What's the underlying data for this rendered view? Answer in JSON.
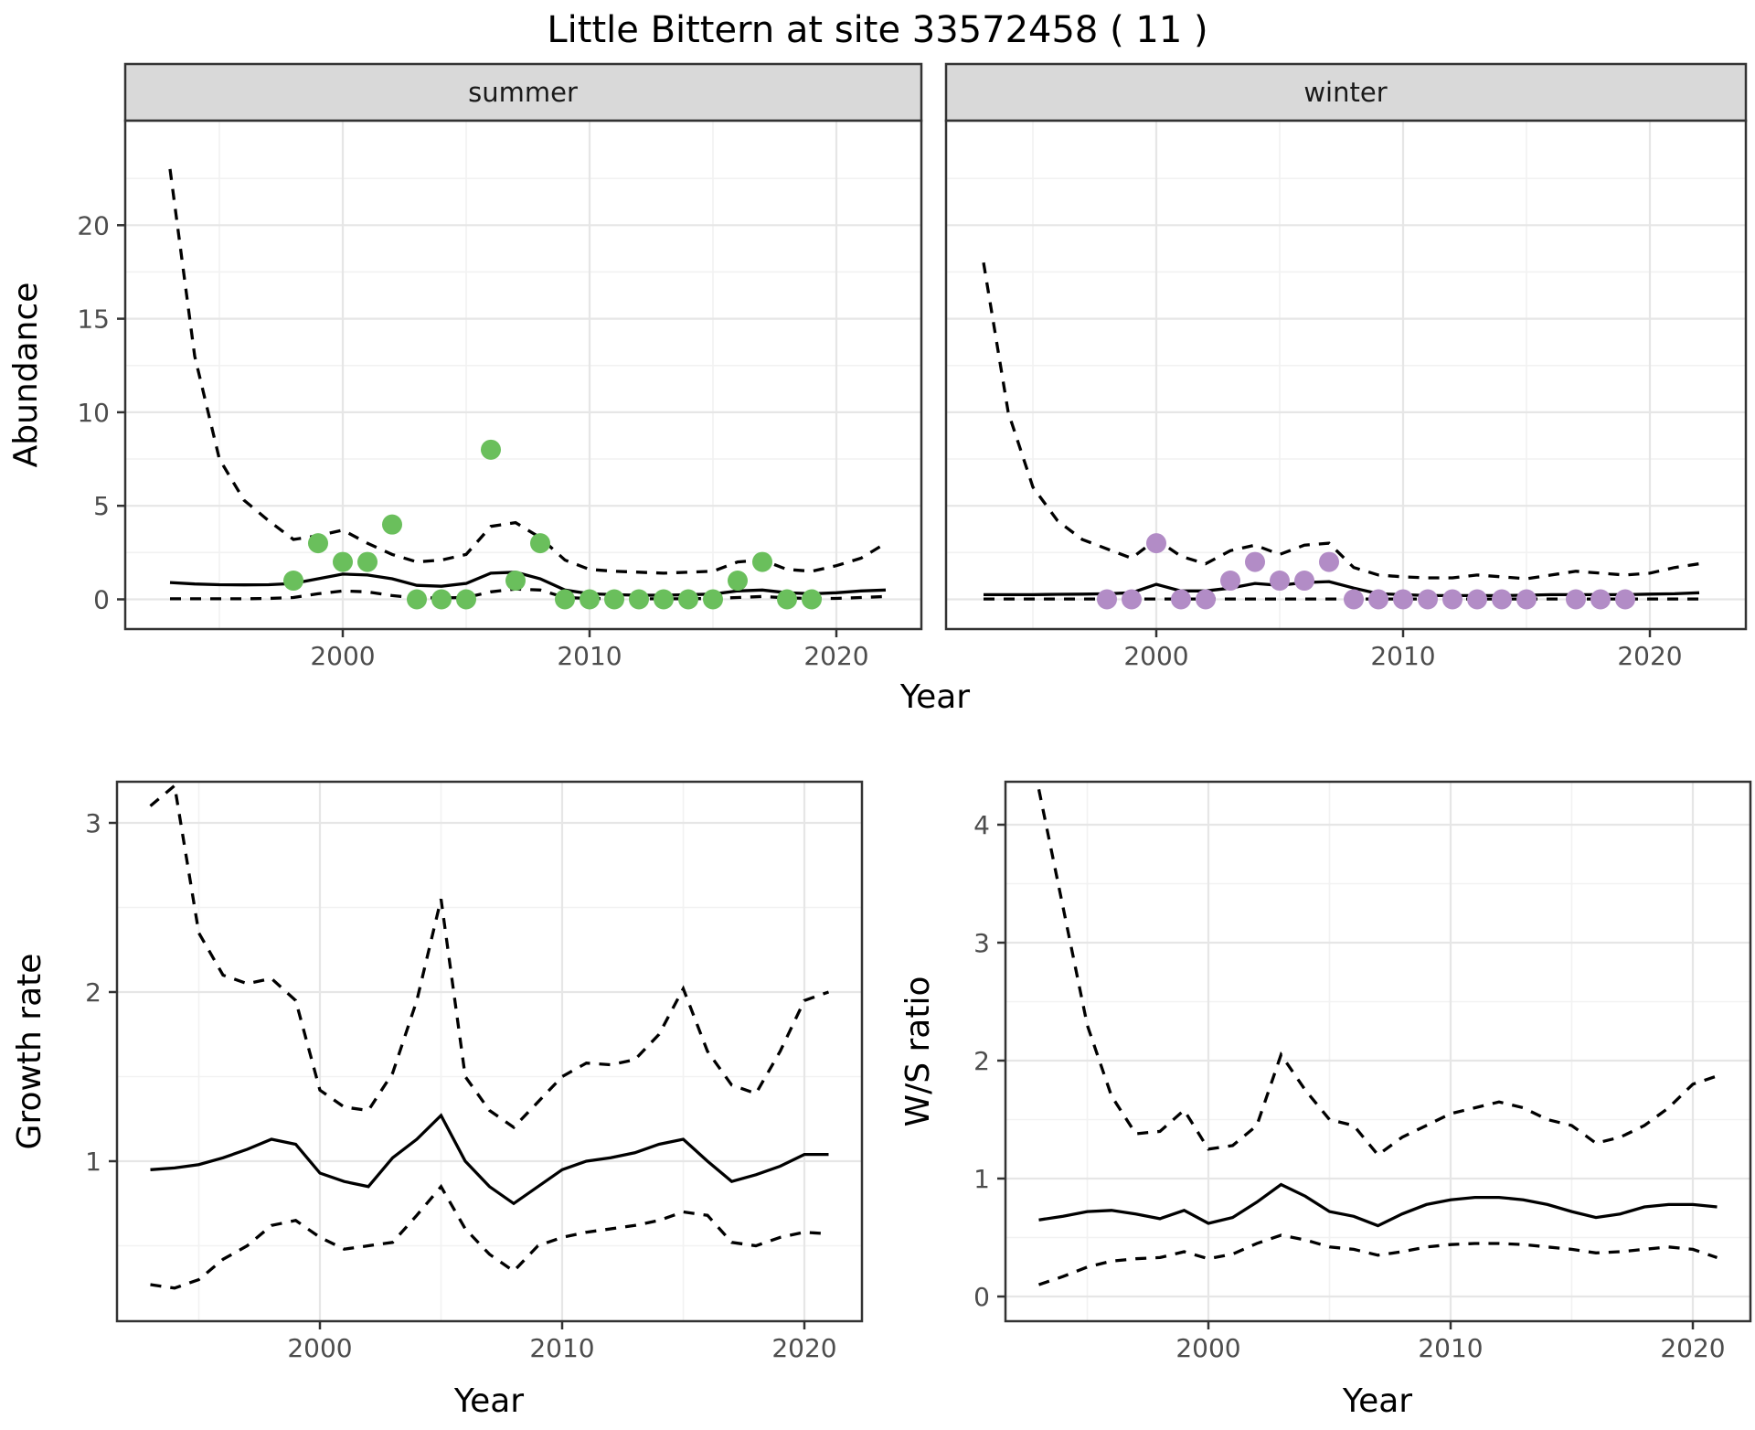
{
  "title": "Little Bittern at site 33572458 ( 11 )",
  "colors": {
    "summer_point": "#6abf5c",
    "winter_point": "#b28cc6",
    "line": "#000000",
    "panel_border": "#333333",
    "strip_bg": "#d9d9d9",
    "grid_major": "#e6e6e6",
    "grid_minor": "#f2f2f2",
    "tick_text": "#4d4d4d"
  },
  "chart_data": [
    {
      "type": "line+scatter",
      "title": "Abundance by season (faceted: summer / winter)",
      "xlabel": "Year",
      "ylabel": "Abundance",
      "x": [
        1993,
        1994,
        1995,
        1996,
        1997,
        1998,
        1999,
        2000,
        2001,
        2002,
        2003,
        2004,
        2005,
        2006,
        2007,
        2008,
        2009,
        2010,
        2011,
        2012,
        2013,
        2014,
        2015,
        2016,
        2017,
        2018,
        2019,
        2020,
        2021,
        2022
      ],
      "xticks": [
        2000,
        2010,
        2020
      ],
      "xminor": [
        1995,
        2005,
        2015,
        2025
      ],
      "yticks": [
        0,
        5,
        10,
        15,
        20
      ],
      "yminor": [
        2.5,
        7.5,
        12.5,
        17.5,
        22.5
      ],
      "ylim": [
        -0.6,
        24
      ],
      "grid": true,
      "legend": "none",
      "facets": [
        {
          "label": "summer",
          "point_color": "#6abf5c",
          "points": {
            "years": [
              1998,
              1999,
              2000,
              2001,
              2002,
              2003,
              2004,
              2005,
              2006,
              2007,
              2008,
              2009,
              2010,
              2011,
              2012,
              2013,
              2014,
              2015,
              2016,
              2017,
              2018,
              2019
            ],
            "values": [
              1,
              3,
              2,
              2,
              4,
              0,
              0,
              0,
              8,
              1,
              3,
              0,
              0,
              0,
              0,
              0,
              0,
              0,
              1,
              2,
              0,
              0
            ]
          },
          "series": [
            {
              "name": "mean",
              "style": "solid",
              "values": [
                0.9,
                0.82,
                0.78,
                0.77,
                0.78,
                0.85,
                1.1,
                1.35,
                1.3,
                1.1,
                0.75,
                0.7,
                0.85,
                1.4,
                1.45,
                1.1,
                0.5,
                0.3,
                0.25,
                0.22,
                0.22,
                0.25,
                0.28,
                0.45,
                0.5,
                0.35,
                0.3,
                0.35,
                0.45,
                0.5
              ]
            },
            {
              "name": "upper95",
              "style": "dashed",
              "values": [
                23.0,
                13.0,
                7.5,
                5.3,
                4.2,
                3.2,
                3.4,
                3.7,
                3.0,
                2.4,
                2.0,
                2.1,
                2.4,
                3.9,
                4.1,
                3.3,
                2.1,
                1.6,
                1.5,
                1.45,
                1.4,
                1.45,
                1.5,
                2.0,
                2.1,
                1.6,
                1.5,
                1.8,
                2.2,
                3.0
              ]
            },
            {
              "name": "lower95",
              "style": "dashed",
              "values": [
                0.03,
                0.03,
                0.03,
                0.03,
                0.05,
                0.1,
                0.3,
                0.45,
                0.4,
                0.2,
                0.08,
                0.08,
                0.1,
                0.4,
                0.55,
                0.5,
                0.1,
                0.05,
                0.03,
                0.03,
                0.03,
                0.03,
                0.05,
                0.1,
                0.15,
                0.08,
                0.05,
                0.05,
                0.1,
                0.15
              ]
            }
          ]
        },
        {
          "label": "winter",
          "point_color": "#b28cc6",
          "points": {
            "years": [
              1998,
              1999,
              2000,
              2001,
              2002,
              2003,
              2004,
              2005,
              2006,
              2007,
              2008,
              2009,
              2010,
              2011,
              2012,
              2013,
              2014,
              2015,
              2017,
              2018,
              2019
            ],
            "values": [
              0,
              0,
              3,
              0,
              0,
              1,
              2,
              1,
              1,
              2,
              0,
              0,
              0,
              0,
              0,
              0,
              0,
              0,
              0,
              0,
              0
            ]
          },
          "series": [
            {
              "name": "mean",
              "style": "solid",
              "values": [
                0.25,
                0.25,
                0.25,
                0.27,
                0.28,
                0.3,
                0.35,
                0.8,
                0.45,
                0.45,
                0.6,
                0.85,
                0.75,
                0.9,
                0.95,
                0.6,
                0.3,
                0.25,
                0.2,
                0.2,
                0.2,
                0.2,
                0.22,
                0.25,
                0.25,
                0.25,
                0.25,
                0.28,
                0.3,
                0.35
              ]
            },
            {
              "name": "upper95",
              "style": "dashed",
              "values": [
                18.0,
                10.0,
                6.0,
                4.2,
                3.2,
                2.7,
                2.2,
                3.2,
                2.3,
                1.9,
                2.6,
                2.9,
                2.4,
                2.9,
                3.0,
                1.7,
                1.3,
                1.2,
                1.15,
                1.15,
                1.3,
                1.2,
                1.1,
                1.3,
                1.5,
                1.4,
                1.3,
                1.4,
                1.7,
                1.9
              ]
            },
            {
              "name": "lower95",
              "style": "dashed",
              "values": [
                0.02,
                0.02,
                0.02,
                0.02,
                0.02,
                0.02,
                0.02,
                0.02,
                0.02,
                0.02,
                0.02,
                0.02,
                0.02,
                0.02,
                0.02,
                0.02,
                0.02,
                0.02,
                0.02,
                0.02,
                0.02,
                0.02,
                0.02,
                0.02,
                0.02,
                0.02,
                0.02,
                0.02,
                0.02,
                0.02
              ]
            }
          ]
        }
      ]
    },
    {
      "type": "line",
      "title": "Growth rate",
      "xlabel": "Year",
      "ylabel": "Growth rate",
      "x": [
        1993,
        1994,
        1995,
        1996,
        1997,
        1998,
        1999,
        2000,
        2001,
        2002,
        2003,
        2004,
        2005,
        2006,
        2007,
        2008,
        2009,
        2010,
        2011,
        2012,
        2013,
        2014,
        2015,
        2016,
        2017,
        2018,
        2019,
        2020,
        2021
      ],
      "xticks": [
        2000,
        2010,
        2020
      ],
      "xminor": [
        1995,
        2005,
        2015
      ],
      "yticks": [
        1,
        2,
        3
      ],
      "yminor": [
        0.5,
        1.5,
        2.5
      ],
      "ylim": [
        0.05,
        3.25
      ],
      "grid": true,
      "series": [
        {
          "name": "mean",
          "style": "solid",
          "values": [
            0.95,
            0.96,
            0.98,
            1.02,
            1.07,
            1.13,
            1.1,
            0.93,
            0.88,
            0.85,
            1.02,
            1.13,
            1.27,
            1.0,
            0.85,
            0.75,
            0.85,
            0.95,
            1.0,
            1.02,
            1.05,
            1.1,
            1.13,
            1.0,
            0.88,
            0.92,
            0.97,
            1.04,
            1.04
          ]
        },
        {
          "name": "upper95",
          "style": "dashed",
          "values": [
            3.1,
            3.22,
            2.35,
            2.1,
            2.05,
            2.08,
            1.95,
            1.42,
            1.32,
            1.3,
            1.52,
            1.95,
            2.55,
            1.5,
            1.3,
            1.2,
            1.35,
            1.5,
            1.58,
            1.57,
            1.6,
            1.75,
            2.02,
            1.65,
            1.45,
            1.4,
            1.65,
            1.95,
            2.0
          ]
        },
        {
          "name": "lower95",
          "style": "dashed",
          "values": [
            0.27,
            0.25,
            0.3,
            0.42,
            0.5,
            0.62,
            0.65,
            0.55,
            0.48,
            0.5,
            0.52,
            0.68,
            0.85,
            0.6,
            0.45,
            0.35,
            0.5,
            0.55,
            0.58,
            0.6,
            0.62,
            0.65,
            0.7,
            0.68,
            0.52,
            0.5,
            0.55,
            0.58,
            0.57
          ]
        }
      ]
    },
    {
      "type": "line",
      "title": "W/S ratio",
      "xlabel": "Year",
      "ylabel": "W/S ratio",
      "x": [
        1993,
        1994,
        1995,
        1996,
        1997,
        1998,
        1999,
        2000,
        2001,
        2002,
        2003,
        2004,
        2005,
        2006,
        2007,
        2008,
        2009,
        2010,
        2011,
        2012,
        2013,
        2014,
        2015,
        2016,
        2017,
        2018,
        2019,
        2020,
        2021
      ],
      "xticks": [
        2000,
        2010,
        2020
      ],
      "xminor": [
        1995,
        2005,
        2015
      ],
      "yticks": [
        0,
        1,
        2,
        3,
        4
      ],
      "yminor": [
        0.5,
        1.5,
        2.5,
        3.5
      ],
      "ylim": [
        -0.2,
        4.35
      ],
      "grid": true,
      "series": [
        {
          "name": "mean",
          "style": "solid",
          "values": [
            0.65,
            0.68,
            0.72,
            0.73,
            0.7,
            0.66,
            0.73,
            0.62,
            0.67,
            0.8,
            0.95,
            0.85,
            0.72,
            0.68,
            0.6,
            0.7,
            0.78,
            0.82,
            0.84,
            0.84,
            0.82,
            0.78,
            0.72,
            0.67,
            0.7,
            0.76,
            0.78,
            0.78,
            0.76
          ]
        },
        {
          "name": "upper95",
          "style": "dashed",
          "values": [
            4.3,
            3.3,
            2.3,
            1.7,
            1.38,
            1.4,
            1.58,
            1.25,
            1.28,
            1.45,
            2.05,
            1.75,
            1.5,
            1.45,
            1.2,
            1.35,
            1.45,
            1.55,
            1.6,
            1.65,
            1.6,
            1.5,
            1.45,
            1.3,
            1.35,
            1.45,
            1.6,
            1.8,
            1.87
          ]
        },
        {
          "name": "lower95",
          "style": "dashed",
          "values": [
            0.1,
            0.17,
            0.25,
            0.3,
            0.32,
            0.33,
            0.38,
            0.32,
            0.36,
            0.45,
            0.52,
            0.48,
            0.42,
            0.4,
            0.35,
            0.38,
            0.42,
            0.44,
            0.45,
            0.45,
            0.44,
            0.42,
            0.4,
            0.37,
            0.38,
            0.4,
            0.42,
            0.4,
            0.33
          ]
        }
      ]
    }
  ]
}
